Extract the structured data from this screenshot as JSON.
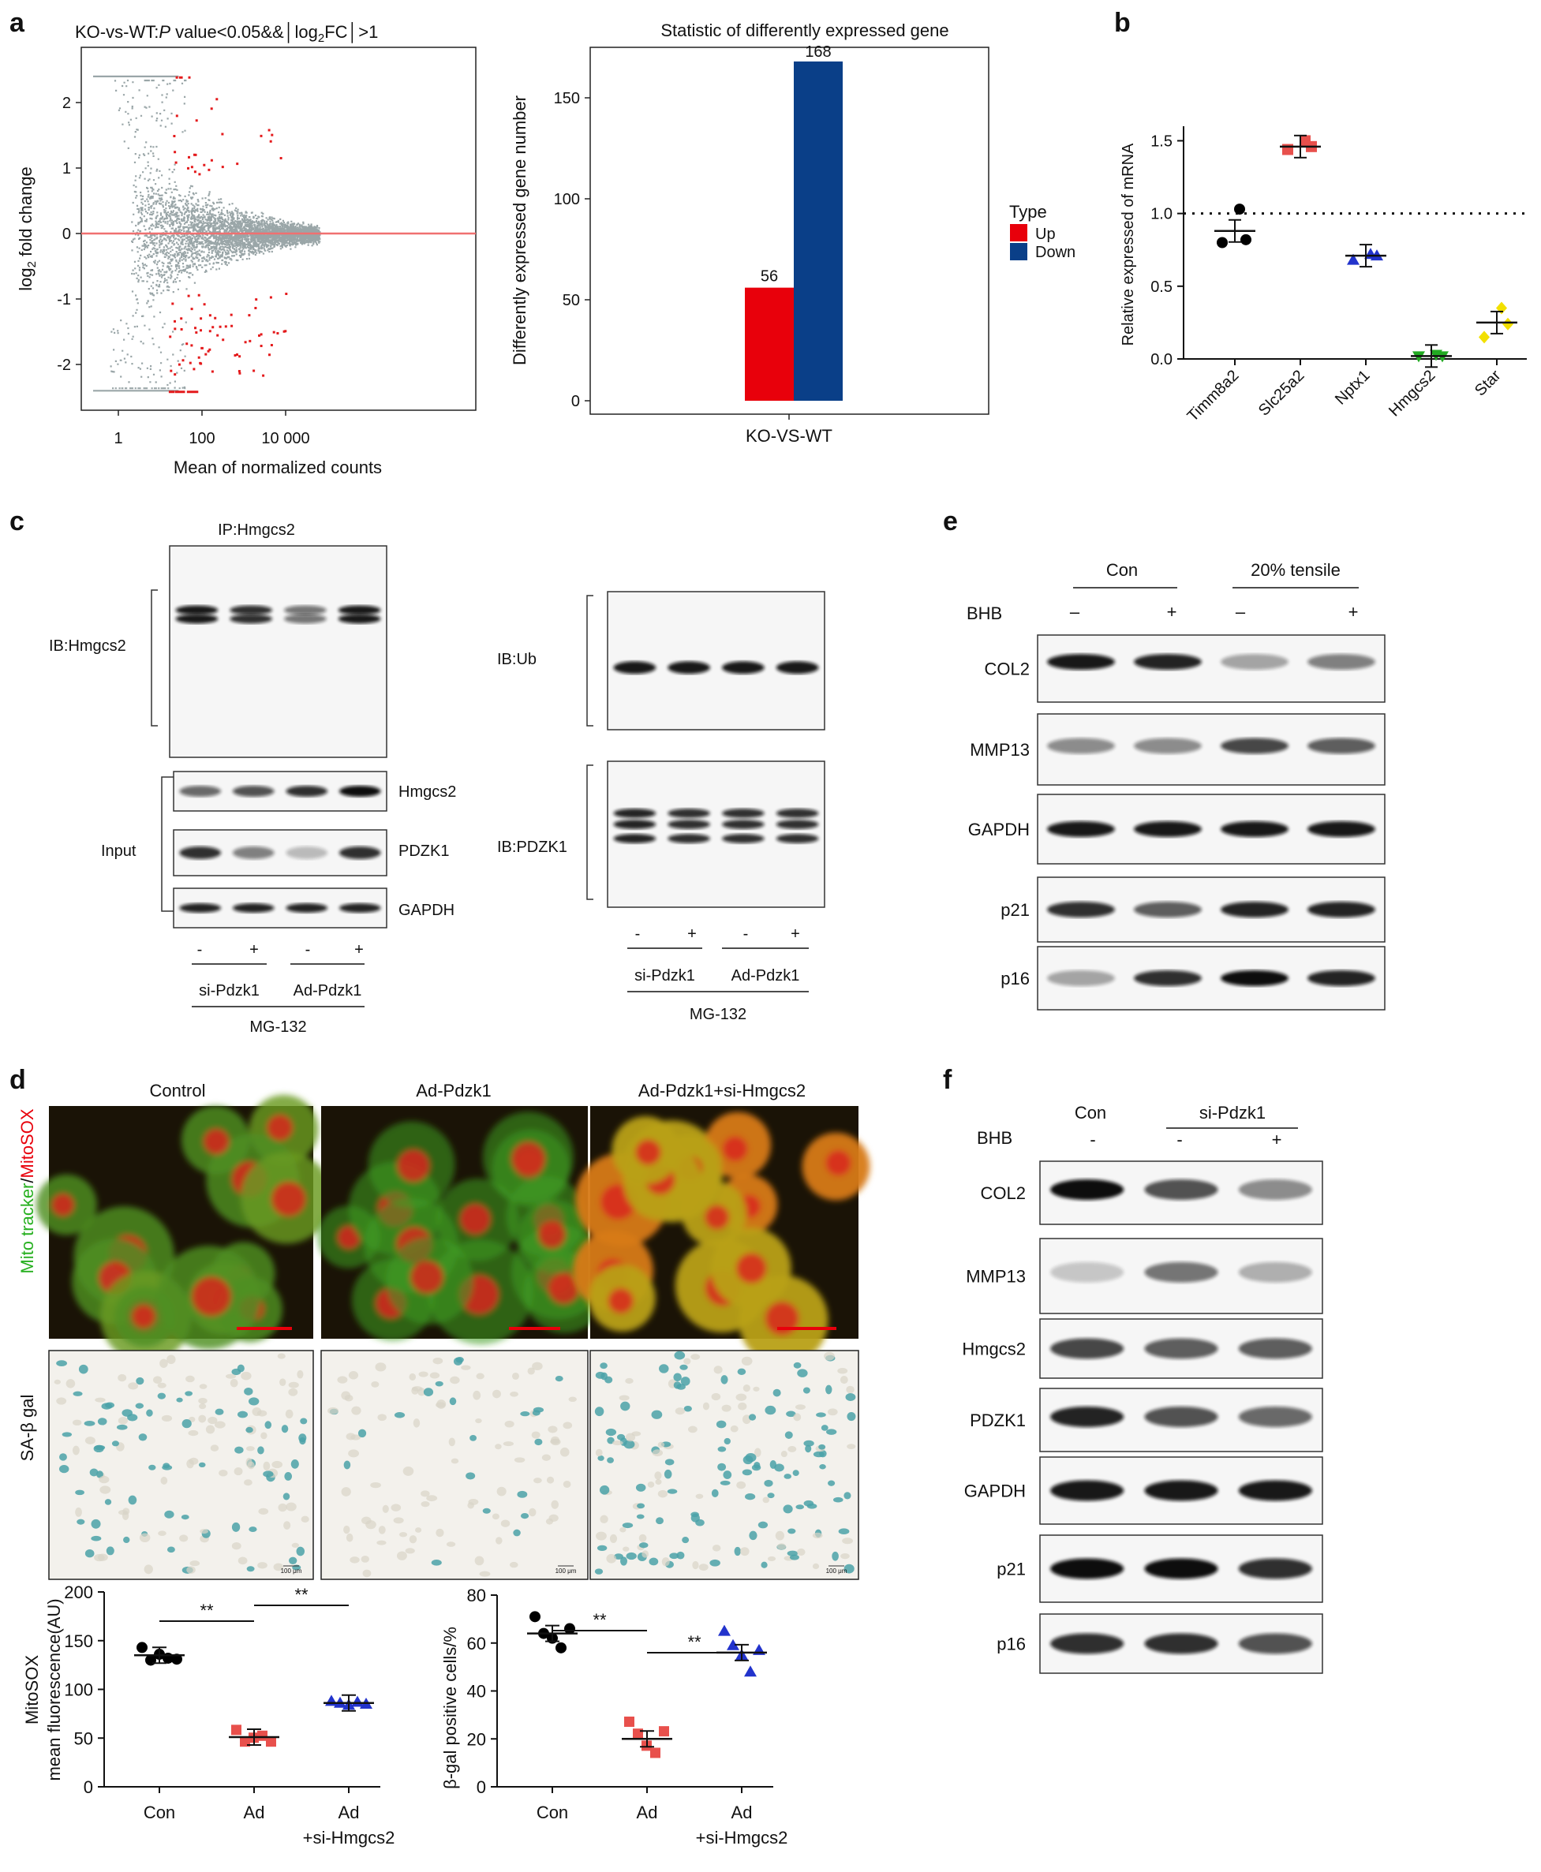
{
  "panel_letters": {
    "a": "a",
    "b": "b",
    "c": "c",
    "d": "d",
    "e": "e",
    "f": "f"
  },
  "colors": {
    "up": "#e8000b",
    "down": "#0a3f88",
    "ma_gray": "#9aa6a8",
    "ma_red": "#e41a1c",
    "line_red": "#f07070",
    "black": "#000000",
    "red": "#e8504c",
    "blue": "#2233cc",
    "green": "#22aa22",
    "yellow": "#f2e000",
    "sa_gal_bg": "#f3f1ec",
    "sa_gal_cell": "#4aa2a8",
    "confocal_green": "#3fae32",
    "confocal_red": "#d8261e"
  },
  "panel_a_ma": {
    "title_prefix": "KO-vs-WT:",
    "title_p": "P",
    "title_rest": " value<0.05&&",
    "title_fc": "log",
    "title_fc_sub": "2",
    "title_fc_end": "FC",
    "title_gt": ">1",
    "ylabel_main": "log",
    "ylabel_sub": "2",
    "ylabel_rest": " fold change",
    "xlabel": "Mean of normalized counts",
    "yticks": [
      "2",
      "1",
      "0",
      "-1",
      "-2"
    ],
    "xticks": [
      "1",
      "100",
      "10 000"
    ]
  },
  "panel_a_bar": {
    "title": "Statistic of differently expressed gene",
    "ylabel": "Differently expressed gene number",
    "xlabel": "KO-VS-WT",
    "yticks": [
      "0",
      "50",
      "100",
      "150"
    ],
    "legend_title": "Type",
    "legend_up": "Up",
    "legend_down": "Down",
    "up_label": "56",
    "down_label": "168"
  },
  "panel_b": {
    "ylabel": "Relative expressed of mRNA",
    "yticks": [
      "0.0",
      "0.5",
      "1.0",
      "1.5"
    ],
    "genes": [
      "Timm8a2",
      "Slc25a2",
      "Nptx1",
      "Hmgcs2",
      "Star"
    ]
  },
  "panel_c": {
    "ip_title": "IP:Hmgcs2",
    "ib_hmgcs2": "IB:Hmgcs2",
    "input": "Input",
    "right_hmgcs2": "Hmgcs2",
    "right_pdzk1": "PDZK1",
    "right_gapdh": "GAPDH",
    "ib_ub": "IB:Ub",
    "ib_pdzk1": "IB:PDZK1",
    "minus": "-",
    "plus": "+",
    "si_pdzk1": "si-Pdzk1",
    "ad_pdzk1": "Ad-Pdzk1",
    "mg132": "MG-132"
  },
  "panel_d": {
    "col_control": "Control",
    "col_ad": "Ad-Pdzk1",
    "col_ad_si": "Ad-Pdzk1+si-Hmgcs2",
    "row1_green": "Mito tracker",
    "row1_slash": "/",
    "row1_red": "MitoSOX",
    "row2": "SA-β gal",
    "scale": "100 μm",
    "left_ylabel1": "MitoSOX",
    "left_ylabel2": "mean fluorescence(AU)",
    "left_yticks": [
      "0",
      "50",
      "100",
      "150",
      "200"
    ],
    "right_ylabel": "β-gal positive cells/%",
    "right_yticks": [
      "0",
      "20",
      "40",
      "60",
      "80"
    ],
    "sig": "**",
    "x_con": "Con",
    "x_ad": "Ad",
    "x_ad2a": "Ad",
    "x_ad2b": "+si-Hmgcs2"
  },
  "panel_e": {
    "con": "Con",
    "tensile": "20% tensile",
    "bhb": "BHB",
    "minus": "–",
    "plus": "+",
    "rows": [
      "COL2",
      "MMP13",
      "GAPDH",
      "p21",
      "p16"
    ]
  },
  "panel_f": {
    "con": "Con",
    "si": "si-Pdzk1",
    "bhb": "BHB",
    "minus": "-",
    "plus": "+",
    "rows": [
      "COL2",
      "MMP13",
      "Hmgcs2",
      "PDZK1",
      "GAPDH",
      "p21",
      "p16"
    ]
  },
  "chart_data": [
    {
      "type": "bar",
      "title": "Statistic of differently expressed gene",
      "xlabel": "KO-VS-WT",
      "ylabel": "Differently expressed gene number",
      "ylim": [
        0,
        175
      ],
      "categories": [
        "KO-VS-WT"
      ],
      "series": [
        {
          "name": "Up",
          "values": [
            56
          ]
        },
        {
          "name": "Down",
          "values": [
            168
          ]
        }
      ],
      "legend": "right"
    },
    {
      "type": "scatter",
      "ylabel": "Relative expressed of mRNA",
      "ylim": [
        0,
        1.6
      ],
      "categories": [
        "Timm8a2",
        "Slc25a2",
        "Nptx1",
        "Hmgcs2",
        "Star"
      ],
      "points": [
        [
          0.8,
          1.03,
          0.82
        ],
        [
          1.44,
          1.5,
          1.46
        ],
        [
          0.68,
          0.72,
          0.71
        ],
        [
          0.02,
          0.03,
          0.02
        ],
        [
          0.15,
          0.35,
          0.24
        ]
      ],
      "means": [
        0.88,
        1.46,
        0.71,
        0.02,
        0.25
      ],
      "reference_line": 1.0
    },
    {
      "type": "scatter",
      "ylabel": "MitoSOX mean fluorescence(AU)",
      "ylim": [
        0,
        200
      ],
      "categories": [
        "Con",
        "Ad",
        "Ad +si-Hmgcs2"
      ],
      "points": [
        [
          143,
          130,
          136,
          132,
          131
        ],
        [
          58,
          46,
          50,
          52,
          46
        ],
        [
          88,
          86,
          84,
          87,
          85
        ]
      ],
      "means": [
        135,
        51,
        86
      ]
    },
    {
      "type": "scatter",
      "ylabel": "β-gal positive cells/%",
      "ylim": [
        0,
        80
      ],
      "categories": [
        "Con",
        "Ad",
        "Ad +si-Hmgcs2"
      ],
      "points": [
        [
          71,
          64,
          62,
          58,
          66
        ],
        [
          27,
          22,
          17,
          14,
          23
        ],
        [
          65,
          59,
          55,
          48,
          57
        ]
      ],
      "means": [
        64,
        20,
        56
      ]
    }
  ]
}
